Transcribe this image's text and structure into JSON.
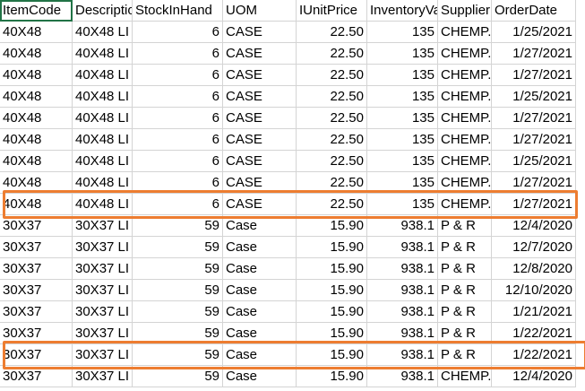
{
  "headers": [
    "ItemCode",
    "Description",
    "StockInHand",
    "UOM",
    "IUnitPrice",
    "InventoryValue",
    "Supplier",
    "OrderDate"
  ],
  "rows": [
    [
      "40X48",
      "40X48 LI",
      "6",
      "CASE",
      "22.50",
      "135",
      "CHEMP.",
      "1/25/2021"
    ],
    [
      "40X48",
      "40X48 LI",
      "6",
      "CASE",
      "22.50",
      "135",
      "CHEMP.",
      "1/27/2021"
    ],
    [
      "40X48",
      "40X48 LI",
      "6",
      "CASE",
      "22.50",
      "135",
      "CHEMP.",
      "1/27/2021"
    ],
    [
      "40X48",
      "40X48 LI",
      "6",
      "CASE",
      "22.50",
      "135",
      "CHEMP.",
      "1/25/2021"
    ],
    [
      "40X48",
      "40X48 LI",
      "6",
      "CASE",
      "22.50",
      "135",
      "CHEMP.",
      "1/27/2021"
    ],
    [
      "40X48",
      "40X48 LI",
      "6",
      "CASE",
      "22.50",
      "135",
      "CHEMP.",
      "1/27/2021"
    ],
    [
      "40X48",
      "40X48 LI",
      "6",
      "CASE",
      "22.50",
      "135",
      "CHEMP.",
      "1/25/2021"
    ],
    [
      "40X48",
      "40X48 LI",
      "6",
      "CASE",
      "22.50",
      "135",
      "CHEMP.",
      "1/27/2021"
    ],
    [
      "40X48",
      "40X48 LI",
      "6",
      "CASE",
      "22.50",
      "135",
      "CHEMP.",
      "1/27/2021"
    ],
    [
      "30X37",
      "30X37 LI",
      "59",
      "Case",
      "15.90",
      "938.1",
      "P & R",
      "12/4/2020"
    ],
    [
      "30X37",
      "30X37 LI",
      "59",
      "Case",
      "15.90",
      "938.1",
      "P & R",
      "12/7/2020"
    ],
    [
      "30X37",
      "30X37 LI",
      "59",
      "Case",
      "15.90",
      "938.1",
      "P & R",
      "12/8/2020"
    ],
    [
      "30X37",
      "30X37 LI",
      "59",
      "Case",
      "15.90",
      "938.1",
      "P & R",
      "12/10/2020"
    ],
    [
      "30X37",
      "30X37 LI",
      "59",
      "Case",
      "15.90",
      "938.1",
      "P & R",
      "1/21/2021"
    ],
    [
      "30X37",
      "30X37 LI",
      "59",
      "Case",
      "15.90",
      "938.1",
      "P & R",
      "1/22/2021"
    ],
    [
      "30X37",
      "30X37 LI",
      "59",
      "Case",
      "15.90",
      "938.1",
      "P & R",
      "1/22/2021"
    ],
    [
      "30X37",
      "30X37 LI",
      "59",
      "Case",
      "15.90",
      "938.1",
      "CHEMP.",
      "12/4/2020"
    ]
  ],
  "highlighted_rows": [
    8,
    15
  ],
  "selected_cell": "A1",
  "colors": {
    "highlight": "#ed7d31",
    "selection": "#217346",
    "gridline": "#d4d4d4"
  }
}
